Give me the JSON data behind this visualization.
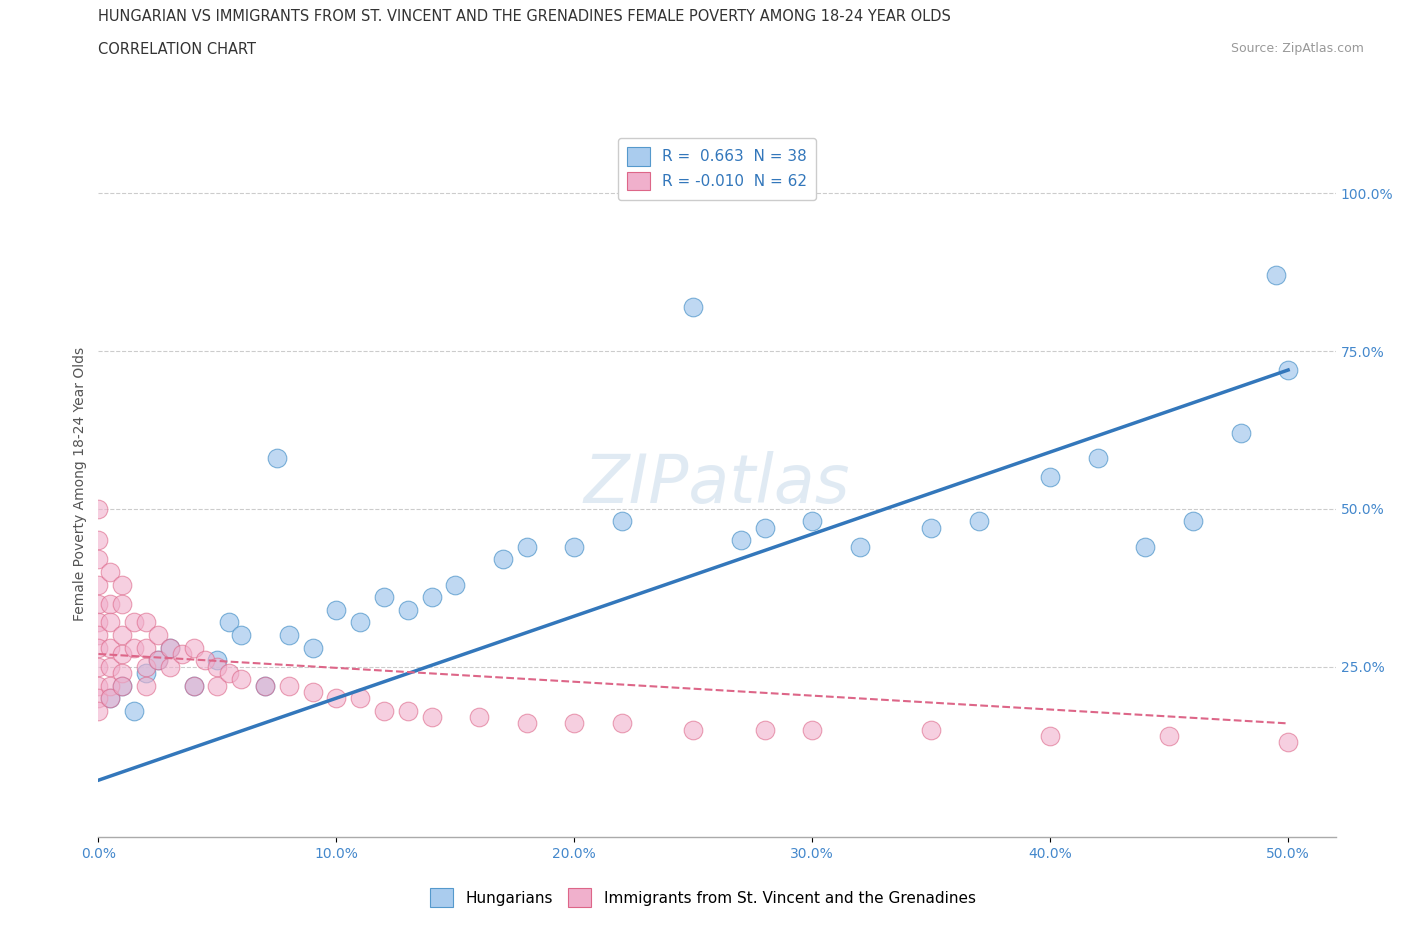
{
  "title_line1": "HUNGARIAN VS IMMIGRANTS FROM ST. VINCENT AND THE GRENADINES FEMALE POVERTY AMONG 18-24 YEAR OLDS",
  "title_line2": "CORRELATION CHART",
  "source_text": "Source: ZipAtlas.com",
  "ylabel": "Female Poverty Among 18-24 Year Olds",
  "xlim": [
    0.0,
    0.52
  ],
  "ylim": [
    -0.02,
    1.1
  ],
  "xtick_labels": [
    "0.0%",
    "10.0%",
    "20.0%",
    "30.0%",
    "40.0%",
    "50.0%"
  ],
  "xtick_vals": [
    0.0,
    0.1,
    0.2,
    0.3,
    0.4,
    0.5
  ],
  "ytick_labels": [
    "25.0%",
    "50.0%",
    "75.0%",
    "100.0%"
  ],
  "ytick_vals": [
    0.25,
    0.5,
    0.75,
    1.0
  ],
  "watermark": "ZIPatlas",
  "legend_blue_r": "0.663",
  "legend_blue_n": "38",
  "legend_pink_r": "-0.010",
  "legend_pink_n": "62",
  "blue_color": "#aaccee",
  "pink_color": "#f0b0cc",
  "blue_edge_color": "#5599cc",
  "pink_edge_color": "#dd6688",
  "blue_line_color": "#3377bb",
  "pink_line_color": "#dd6688",
  "blue_scatter_x": [
    0.005,
    0.01,
    0.015,
    0.02,
    0.025,
    0.03,
    0.04,
    0.05,
    0.055,
    0.06,
    0.07,
    0.075,
    0.08,
    0.09,
    0.1,
    0.11,
    0.12,
    0.13,
    0.14,
    0.15,
    0.17,
    0.18,
    0.2,
    0.22,
    0.25,
    0.27,
    0.28,
    0.3,
    0.32,
    0.35,
    0.37,
    0.4,
    0.42,
    0.44,
    0.46,
    0.48,
    0.495,
    0.5
  ],
  "blue_scatter_y": [
    0.2,
    0.22,
    0.18,
    0.24,
    0.26,
    0.28,
    0.22,
    0.26,
    0.32,
    0.3,
    0.22,
    0.58,
    0.3,
    0.28,
    0.34,
    0.32,
    0.36,
    0.34,
    0.36,
    0.38,
    0.42,
    0.44,
    0.44,
    0.48,
    0.82,
    0.45,
    0.47,
    0.48,
    0.44,
    0.47,
    0.48,
    0.55,
    0.58,
    0.44,
    0.48,
    0.62,
    0.87,
    0.72
  ],
  "pink_scatter_x": [
    0.0,
    0.0,
    0.0,
    0.0,
    0.0,
    0.0,
    0.0,
    0.0,
    0.0,
    0.0,
    0.0,
    0.0,
    0.005,
    0.005,
    0.005,
    0.005,
    0.005,
    0.005,
    0.005,
    0.01,
    0.01,
    0.01,
    0.01,
    0.01,
    0.01,
    0.015,
    0.015,
    0.02,
    0.02,
    0.02,
    0.02,
    0.025,
    0.025,
    0.03,
    0.03,
    0.035,
    0.04,
    0.04,
    0.045,
    0.05,
    0.05,
    0.055,
    0.06,
    0.07,
    0.08,
    0.09,
    0.1,
    0.11,
    0.12,
    0.13,
    0.14,
    0.16,
    0.18,
    0.2,
    0.22,
    0.25,
    0.28,
    0.3,
    0.35,
    0.4,
    0.45,
    0.5
  ],
  "pink_scatter_y": [
    0.5,
    0.45,
    0.42,
    0.38,
    0.35,
    0.32,
    0.3,
    0.28,
    0.25,
    0.22,
    0.2,
    0.18,
    0.4,
    0.35,
    0.32,
    0.28,
    0.25,
    0.22,
    0.2,
    0.38,
    0.35,
    0.3,
    0.27,
    0.24,
    0.22,
    0.32,
    0.28,
    0.32,
    0.28,
    0.25,
    0.22,
    0.3,
    0.26,
    0.28,
    0.25,
    0.27,
    0.28,
    0.22,
    0.26,
    0.25,
    0.22,
    0.24,
    0.23,
    0.22,
    0.22,
    0.21,
    0.2,
    0.2,
    0.18,
    0.18,
    0.17,
    0.17,
    0.16,
    0.16,
    0.16,
    0.15,
    0.15,
    0.15,
    0.15,
    0.14,
    0.14,
    0.13
  ],
  "blue_trend_x": [
    0.0,
    0.5
  ],
  "blue_trend_y": [
    0.07,
    0.72
  ],
  "pink_trend_x": [
    0.0,
    0.5
  ],
  "pink_trend_y": [
    0.27,
    0.16
  ],
  "title_fontsize": 10.5,
  "subtitle_fontsize": 10.5,
  "axis_label_fontsize": 10,
  "tick_fontsize": 10,
  "legend_fontsize": 11,
  "watermark_fontsize": 48,
  "background_color": "#ffffff",
  "grid_color": "#cccccc",
  "axis_color": "#aaaaaa",
  "right_tick_color": "#4488cc",
  "xlabel_color": "#4488cc"
}
